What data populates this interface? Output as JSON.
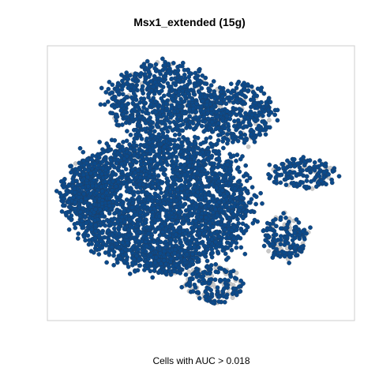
{
  "chart_data": {
    "type": "scatter",
    "title": "Msx1_extended (15g)",
    "xlabel": "Cells with AUC > 0.018",
    "ylabel": "",
    "grid": false,
    "legend": "none",
    "colors": {
      "above_threshold": "#0b4a8b",
      "above_edge": "#1f3f66",
      "below_threshold": "#c8c8c8"
    },
    "series": [
      {
        "name": "",
        "clusters": [
          {
            "region": "main-body",
            "cx": 205,
            "cy": 255,
            "rx": 120,
            "ry": 88,
            "n": 2600,
            "share_below": 0.0
          },
          {
            "region": "top-lobe",
            "cx": 205,
            "cy": 125,
            "rx": 75,
            "ry": 48,
            "n": 700,
            "share_below": 0.06
          },
          {
            "region": "upper-right-lobe",
            "cx": 300,
            "cy": 145,
            "rx": 52,
            "ry": 40,
            "n": 380,
            "share_below": 0.1
          },
          {
            "region": "left-edge",
            "cx": 110,
            "cy": 245,
            "rx": 34,
            "ry": 48,
            "n": 300,
            "share_below": 0.03
          },
          {
            "region": "right-arm",
            "cx": 385,
            "cy": 220,
            "rx": 48,
            "ry": 20,
            "n": 160,
            "share_below": 0.12
          },
          {
            "region": "right-lower-cluster",
            "cx": 362,
            "cy": 300,
            "rx": 30,
            "ry": 30,
            "n": 180,
            "share_below": 0.22
          },
          {
            "region": "bottom-cluster",
            "cx": 270,
            "cy": 360,
            "rx": 40,
            "ry": 25,
            "n": 200,
            "share_below": 0.3
          },
          {
            "region": "lower-center",
            "cx": 215,
            "cy": 330,
            "rx": 35,
            "ry": 18,
            "n": 150,
            "share_below": 0.05
          }
        ]
      }
    ]
  }
}
